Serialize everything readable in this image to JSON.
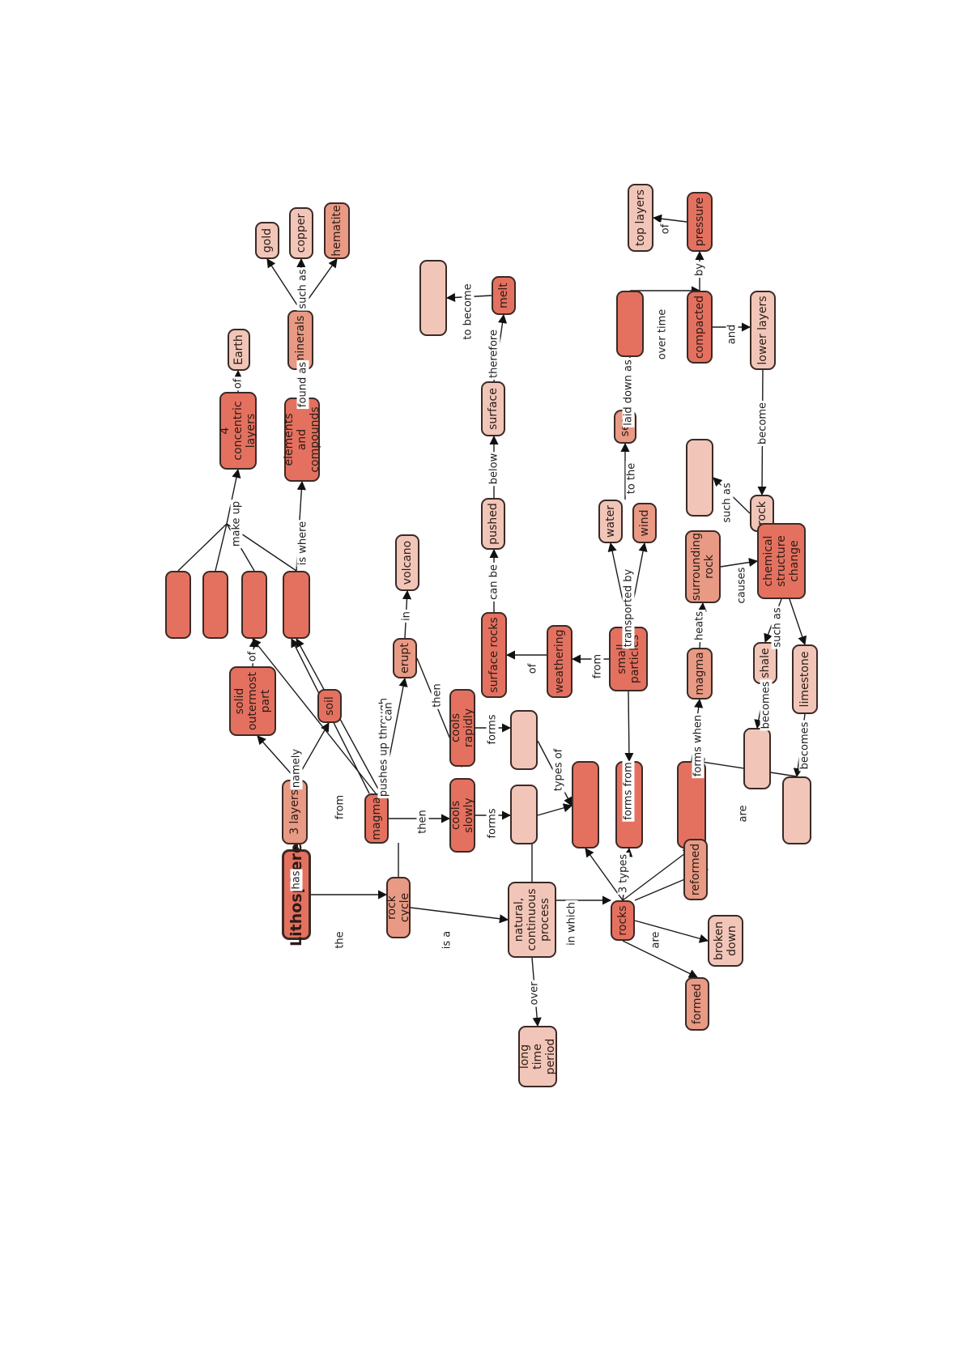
{
  "concept_map": {
    "root": "Lithosphere",
    "nodes": {
      "lithosphere": "Lithosphere",
      "three_layers": "3 layers",
      "solid_outermost": "solid outermost part",
      "soil": "soil",
      "layer_a": "",
      "layer_b": "",
      "layer_c": "",
      "layer_d": "",
      "four_layers": "4 concentric layers",
      "earth": "Earth",
      "elements": "elements and compounds",
      "minerals": "minerals",
      "gold": "gold",
      "copper": "copper",
      "hematite": "hematite",
      "magma": "magma",
      "erupt": "erupt",
      "volcano": "volcano",
      "cools_slowly": "cools slowly",
      "cools_rapidly": "cools rapidly",
      "slow_type": "",
      "rapid_type": "",
      "rock_type_1": "",
      "rock_type_2": "",
      "rock_type_3": "",
      "rock_cycle": "rock cycle",
      "process": "natural, continuous process",
      "long_time": "long time period",
      "rocks": "rocks",
      "formed": "formed",
      "broken_down": "broken down",
      "reformed": "reformed",
      "surface_rocks": "surface rocks",
      "pushed": "pushed",
      "surface": "surface",
      "melt": "melt",
      "melt_result": "",
      "weathering": "weathering",
      "small_particles": "small particles",
      "water": "water",
      "wind": "wind",
      "sea": "sea",
      "laid_down_result": "",
      "compacted": "compacted",
      "pressure": "pressure",
      "top_layers": "top layers",
      "lower_layers": "lower layers",
      "rock": "rock",
      "rock_example": "",
      "magma2": "magma",
      "surrounding_rock": "surrounding rock",
      "chemical_change": "chemical structure change",
      "shale": "shale",
      "limestone": "limestone",
      "shale_becomes": "",
      "limestone_becomes": ""
    },
    "links": {
      "the": "the",
      "has": "has",
      "is_a": "is a",
      "namely": "namely",
      "of": "of",
      "make_up": "make up",
      "is_where": "is where",
      "found_as": "found as",
      "such_as": "such as",
      "from": "from",
      "pushes_up_through": "pushes up through",
      "can": "can",
      "in": "in",
      "then": "then",
      "forms": "forms",
      "types_of": "types of",
      "over": "over",
      "in_which": "in which",
      "three_types": "3 types",
      "are": "are",
      "can_be": "can be",
      "below": "below",
      "therefore": "therefore",
      "to_become": "to become",
      "forms_from": "forms from",
      "transported_by": "transported by",
      "to_the": "to the",
      "laid_down_as": "laid down as",
      "over_time": "over time",
      "by": "by",
      "and": "and",
      "become": "become",
      "forms_when": "forms when",
      "heats": "heats",
      "causes": "causes",
      "becomes": "becomes"
    }
  }
}
